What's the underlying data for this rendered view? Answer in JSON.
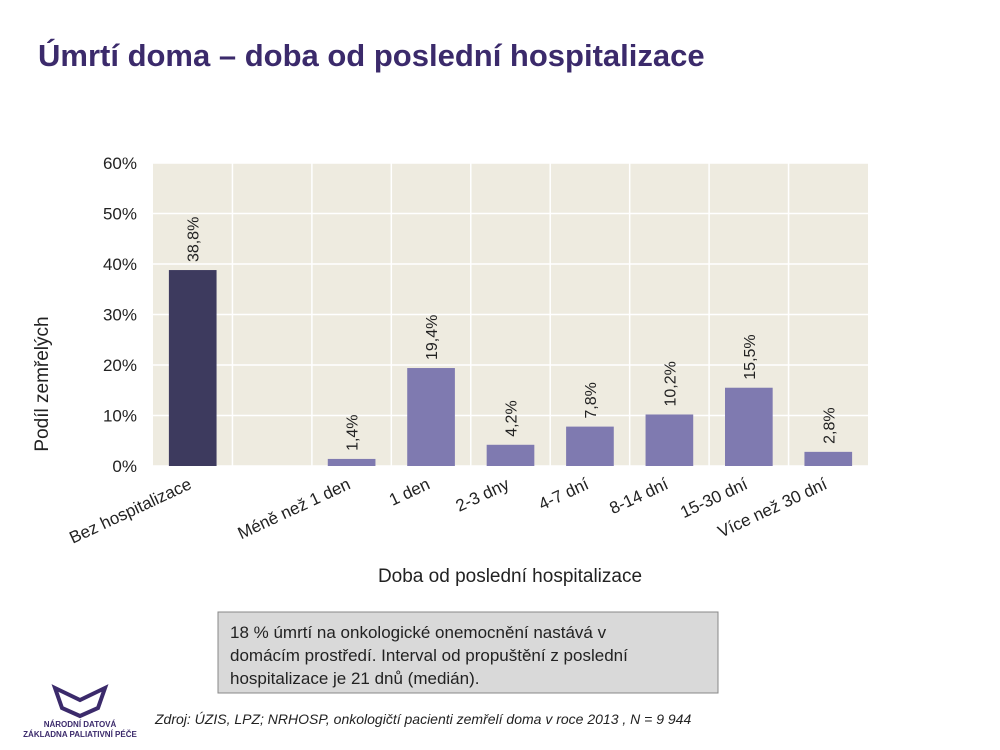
{
  "chart_data": {
    "type": "bar",
    "title": "Úmrtí doma – doba od poslední hospitalizace",
    "x_label": "Doba od poslední hospitalizace",
    "y_label": "Podíl zemřelých",
    "categories": [
      "Bez hospitalizace",
      null,
      "Méně než 1 den",
      "1 den",
      "2-3 dny",
      "4-7 dní",
      "8-14 dní",
      "15-30 dní",
      "Více než 30 dní"
    ],
    "values": [
      38.8,
      null,
      1.4,
      19.4,
      4.2,
      7.8,
      10.2,
      15.5,
      2.8
    ],
    "value_labels": [
      "38,8%",
      null,
      "1,4%",
      "19,4%",
      "4,2%",
      "7,8%",
      "10,2%",
      "15,5%",
      "2,8%"
    ],
    "colors": [
      "#3d3a5e",
      "#7f7ab0",
      "#7f7ab0",
      "#7f7ab0",
      "#7f7ab0",
      "#7f7ab0",
      "#7f7ab0",
      "#7f7ab0",
      "#7f7ab0"
    ],
    "ylim": [
      0,
      60
    ],
    "yticks": [
      {
        "value": 0,
        "label": "0%"
      },
      {
        "value": 10,
        "label": "10%"
      },
      {
        "value": 20,
        "label": "20%"
      },
      {
        "value": 30,
        "label": "30%"
      },
      {
        "value": 40,
        "label": "40%"
      },
      {
        "value": 50,
        "label": "50%"
      },
      {
        "value": 60,
        "label": "60%"
      }
    ],
    "grid": true
  },
  "note": [
    "18 % úmrtí na onkologické onemocnění nastává v",
    "domácím prostředí. Interval od propuštění z poslední",
    "hospitalizace je 21 dnů (medián)."
  ],
  "source": "Zdroj: ÚZIS, LPZ; NRHOSP, onkologičtí pacienti zemřelí doma v roce 2013 , N = 9 944",
  "logo": [
    "NÁRODNÍ DATOVÁ",
    "ZÁKLADNA PALIATIVNÍ PÉČE"
  ]
}
